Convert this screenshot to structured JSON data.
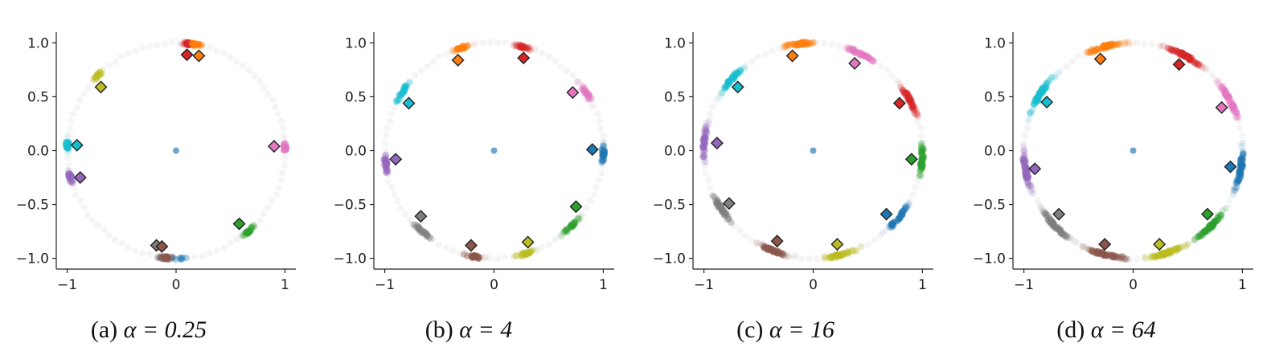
{
  "figure": {
    "colors": {
      "blue": "#1f77b4",
      "orange": "#ff7f0e",
      "green": "#2ca02c",
      "red": "#d62728",
      "purple": "#9467bd",
      "brown": "#8c564b",
      "pink": "#e377c2",
      "gray": "#7f7f7f",
      "olive": "#bcbd22",
      "cyan": "#17becf",
      "axis": "#222222"
    }
  },
  "chart_data": [
    {
      "type": "scatter",
      "caption_prefix": "(a)",
      "caption_expr": "α = 0.25",
      "xlim": [
        -1.1,
        1.1
      ],
      "ylim": [
        -1.1,
        1.1
      ],
      "xticks": [
        -1,
        0,
        1
      ],
      "yticks": [
        1.0,
        0.5,
        0.0,
        -0.5,
        -1.0
      ],
      "xtick_labels": [
        "−1",
        "0",
        "1"
      ],
      "ytick_labels": [
        "1.0",
        "0.5",
        "0.0",
        "−0.5",
        "−1.0"
      ],
      "center_point": [
        0,
        0
      ],
      "prototypes": [
        {
          "class": "red",
          "x": 0.1,
          "y": 0.89
        },
        {
          "class": "orange",
          "x": 0.21,
          "y": 0.88
        },
        {
          "class": "olive",
          "x": -0.69,
          "y": 0.59
        },
        {
          "class": "cyan",
          "x": -0.91,
          "y": 0.05
        },
        {
          "class": "purple",
          "x": -0.88,
          "y": -0.25
        },
        {
          "class": "pink",
          "x": 0.9,
          "y": 0.04
        },
        {
          "class": "green",
          "x": 0.58,
          "y": -0.68
        },
        {
          "class": "gray",
          "x": -0.18,
          "y": -0.88
        },
        {
          "class": "brown",
          "x": -0.13,
          "y": -0.89
        }
      ],
      "clusters": [
        {
          "class": "red",
          "angle": 84,
          "spread": 5,
          "n": 22
        },
        {
          "class": "orange",
          "angle": 79,
          "spread": 5,
          "n": 20
        },
        {
          "class": "olive",
          "angle": 136,
          "spread": 5,
          "n": 18
        },
        {
          "class": "cyan",
          "angle": 177,
          "spread": 6,
          "n": 24
        },
        {
          "class": "purple",
          "angle": 194,
          "spread": 6,
          "n": 22
        },
        {
          "class": "pink",
          "angle": 2,
          "spread": 5,
          "n": 22
        },
        {
          "class": "green",
          "angle": 312,
          "spread": 6,
          "n": 24
        },
        {
          "class": "gray",
          "angle": 263,
          "spread": 5,
          "n": 20
        },
        {
          "class": "brown",
          "angle": 265,
          "spread": 5,
          "n": 20
        },
        {
          "class": "blue",
          "angle": 272,
          "spread": 8,
          "n": 6
        }
      ]
    },
    {
      "type": "scatter",
      "caption_prefix": "(b)",
      "caption_expr": "α = 4",
      "xlim": [
        -1.1,
        1.1
      ],
      "ylim": [
        -1.1,
        1.1
      ],
      "xticks": [
        -1,
        0,
        1
      ],
      "yticks": [
        1.0,
        0.5,
        0.0,
        -0.5,
        -1.0
      ],
      "xtick_labels": [
        "−1",
        "0",
        "1"
      ],
      "ytick_labels": [
        "1.0",
        "0.5",
        "0.0",
        "−0.5",
        "−1.0"
      ],
      "center_point": [
        0,
        0
      ],
      "prototypes": [
        {
          "class": "orange",
          "x": -0.33,
          "y": 0.84
        },
        {
          "class": "red",
          "x": 0.27,
          "y": 0.86
        },
        {
          "class": "cyan",
          "x": -0.78,
          "y": 0.44
        },
        {
          "class": "pink",
          "x": 0.72,
          "y": 0.54
        },
        {
          "class": "purple",
          "x": -0.9,
          "y": -0.08
        },
        {
          "class": "blue",
          "x": 0.9,
          "y": 0.01
        },
        {
          "class": "gray",
          "x": -0.67,
          "y": -0.61
        },
        {
          "class": "green",
          "x": 0.75,
          "y": -0.52
        },
        {
          "class": "brown",
          "x": -0.21,
          "y": -0.88
        },
        {
          "class": "olive",
          "x": 0.31,
          "y": -0.85
        }
      ],
      "clusters": [
        {
          "class": "orange",
          "angle": 107,
          "spread": 8,
          "n": 24
        },
        {
          "class": "red",
          "angle": 75,
          "spread": 7,
          "n": 22
        },
        {
          "class": "cyan",
          "angle": 147,
          "spread": 10,
          "n": 26
        },
        {
          "class": "pink",
          "angle": 33,
          "spread": 9,
          "n": 26
        },
        {
          "class": "purple",
          "angle": 187,
          "spread": 10,
          "n": 26
        },
        {
          "class": "blue",
          "angle": 358,
          "spread": 9,
          "n": 26
        },
        {
          "class": "gray",
          "angle": 229,
          "spread": 10,
          "n": 26
        },
        {
          "class": "green",
          "angle": 315,
          "spread": 10,
          "n": 26
        },
        {
          "class": "brown",
          "angle": 259,
          "spread": 9,
          "n": 24
        },
        {
          "class": "olive",
          "angle": 287,
          "spread": 9,
          "n": 24
        }
      ]
    },
    {
      "type": "scatter",
      "caption_prefix": "(c)",
      "caption_expr": "α = 16",
      "xlim": [
        -1.1,
        1.1
      ],
      "ylim": [
        -1.1,
        1.1
      ],
      "xticks": [
        -1,
        0,
        1
      ],
      "yticks": [
        1.0,
        0.5,
        0.0,
        -0.5,
        -1.0
      ],
      "xtick_labels": [
        "−1",
        "0",
        "1"
      ],
      "ytick_labels": [
        "1.0",
        "0.5",
        "0.0",
        "−0.5",
        "−1.0"
      ],
      "center_point": [
        0,
        0
      ],
      "prototypes": [
        {
          "class": "orange",
          "x": -0.19,
          "y": 0.88
        },
        {
          "class": "pink",
          "x": 0.38,
          "y": 0.81
        },
        {
          "class": "cyan",
          "x": -0.69,
          "y": 0.59
        },
        {
          "class": "red",
          "x": 0.79,
          "y": 0.44
        },
        {
          "class": "purple",
          "x": -0.88,
          "y": 0.07
        },
        {
          "class": "green",
          "x": 0.9,
          "y": -0.08
        },
        {
          "class": "gray",
          "x": -0.77,
          "y": -0.49
        },
        {
          "class": "blue",
          "x": 0.67,
          "y": -0.59
        },
        {
          "class": "brown",
          "x": -0.33,
          "y": -0.84
        },
        {
          "class": "olive",
          "x": 0.22,
          "y": -0.87
        }
      ],
      "clusters": [
        {
          "class": "orange",
          "angle": 97,
          "spread": 14,
          "n": 40
        },
        {
          "class": "pink",
          "angle": 64,
          "spread": 14,
          "n": 40
        },
        {
          "class": "cyan",
          "angle": 138,
          "spread": 15,
          "n": 40
        },
        {
          "class": "red",
          "angle": 28,
          "spread": 14,
          "n": 40
        },
        {
          "class": "purple",
          "angle": 176,
          "spread": 15,
          "n": 40
        },
        {
          "class": "green",
          "angle": 355,
          "spread": 15,
          "n": 40
        },
        {
          "class": "gray",
          "angle": 213,
          "spread": 15,
          "n": 40
        },
        {
          "class": "blue",
          "angle": 321,
          "spread": 14,
          "n": 40
        },
        {
          "class": "brown",
          "angle": 248,
          "spread": 15,
          "n": 40
        },
        {
          "class": "olive",
          "angle": 285,
          "spread": 15,
          "n": 40
        }
      ]
    },
    {
      "type": "scatter",
      "caption_prefix": "(d)",
      "caption_expr": "α = 64",
      "xlim": [
        -1.1,
        1.1
      ],
      "ylim": [
        -1.1,
        1.1
      ],
      "xticks": [
        -1,
        0,
        1
      ],
      "yticks": [
        1.0,
        0.5,
        0.0,
        -0.5,
        -1.0
      ],
      "xtick_labels": [
        "−1",
        "0",
        "1"
      ],
      "ytick_labels": [
        "1.0",
        "0.5",
        "0.0",
        "−0.5",
        "−1.0"
      ],
      "center_point": [
        0,
        0
      ],
      "prototypes": [
        {
          "class": "orange",
          "x": -0.3,
          "y": 0.85
        },
        {
          "class": "red",
          "x": 0.42,
          "y": 0.8
        },
        {
          "class": "cyan",
          "x": -0.79,
          "y": 0.45
        },
        {
          "class": "pink",
          "x": 0.81,
          "y": 0.4
        },
        {
          "class": "purple",
          "x": -0.9,
          "y": -0.17
        },
        {
          "class": "blue",
          "x": 0.89,
          "y": -0.15
        },
        {
          "class": "gray",
          "x": -0.68,
          "y": -0.59
        },
        {
          "class": "green",
          "x": 0.68,
          "y": -0.59
        },
        {
          "class": "brown",
          "x": -0.26,
          "y": -0.87
        },
        {
          "class": "olive",
          "x": 0.24,
          "y": -0.87
        }
      ],
      "clusters": [
        {
          "class": "orange",
          "angle": 105,
          "spread": 18,
          "n": 55
        },
        {
          "class": "red",
          "angle": 62,
          "spread": 18,
          "n": 55
        },
        {
          "class": "cyan",
          "angle": 148,
          "spread": 18,
          "n": 55
        },
        {
          "class": "pink",
          "angle": 28,
          "spread": 18,
          "n": 55
        },
        {
          "class": "purple",
          "angle": 190,
          "spread": 18,
          "n": 55
        },
        {
          "class": "blue",
          "angle": 350,
          "spread": 18,
          "n": 55
        },
        {
          "class": "gray",
          "angle": 225,
          "spread": 18,
          "n": 55
        },
        {
          "class": "green",
          "angle": 315,
          "spread": 18,
          "n": 55
        },
        {
          "class": "brown",
          "angle": 255,
          "spread": 18,
          "n": 55
        },
        {
          "class": "olive",
          "angle": 288,
          "spread": 18,
          "n": 55
        }
      ]
    }
  ]
}
